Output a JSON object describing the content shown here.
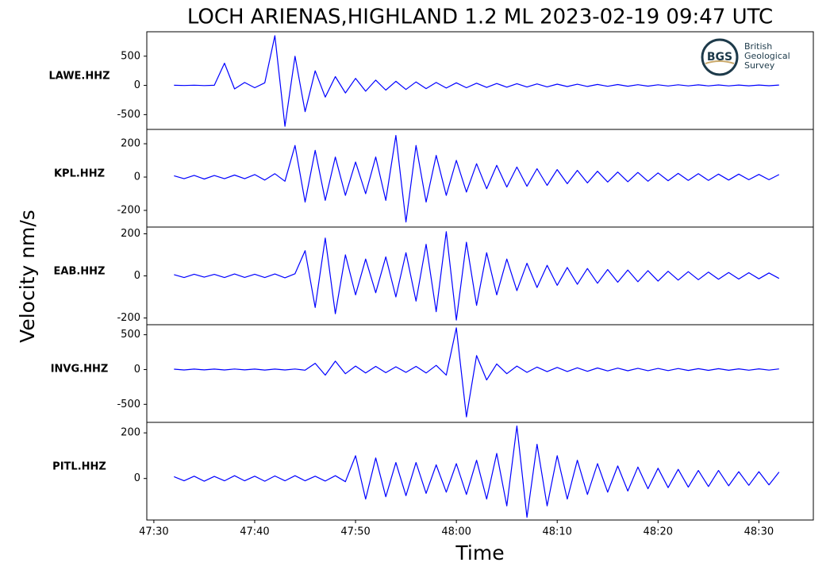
{
  "chart_data": [
    {
      "type": "line",
      "title": "LOCH ARIENAS,HIGHLAND 1.2 ML   2023-02-19 09:47 UTC",
      "y_label": "Velocity nm/s",
      "label": "LAWE.HHZ",
      "color": "#0000ff",
      "x": [
        2852,
        2853,
        2854,
        2855,
        2856,
        2857,
        2858,
        2859,
        2860,
        2861,
        2862,
        2863,
        2864,
        2865,
        2866,
        2867,
        2868,
        2869,
        2870,
        2871,
        2872,
        2873,
        2874,
        2875,
        2876,
        2877,
        2878,
        2879,
        2880,
        2881,
        2882,
        2883,
        2884,
        2885,
        2886,
        2887,
        2888,
        2889,
        2890,
        2891,
        2892,
        2893,
        2894,
        2895,
        2896,
        2897,
        2898,
        2899,
        2900,
        2901,
        2902,
        2903,
        2904,
        2905,
        2906,
        2907,
        2908,
        2909,
        2910,
        2911,
        2912
      ],
      "values": [
        3,
        -2,
        4,
        -3,
        2,
        380,
        -60,
        50,
        -40,
        45,
        850,
        -700,
        500,
        -450,
        250,
        -200,
        150,
        -130,
        120,
        -100,
        90,
        -80,
        70,
        -70,
        60,
        -55,
        50,
        -45,
        45,
        -40,
        38,
        -35,
        32,
        -30,
        30,
        -28,
        25,
        -25,
        22,
        -20,
        20,
        -18,
        16,
        -15,
        15,
        -14,
        12,
        -12,
        11,
        -10,
        10,
        -9,
        9,
        -8,
        8,
        -8,
        7,
        -7,
        7,
        -6,
        6
      ],
      "xlim": [
        2849.3,
        2915.4
      ],
      "ylim": [
        -753,
        918
      ],
      "yticks": [
        -500,
        0,
        500
      ]
    },
    {
      "type": "line",
      "label": "KPL.HHZ",
      "color": "#0000ff",
      "x": [
        2852,
        2853,
        2854,
        2855,
        2856,
        2857,
        2858,
        2859,
        2860,
        2861,
        2862,
        2863,
        2864,
        2865,
        2866,
        2867,
        2868,
        2869,
        2870,
        2871,
        2872,
        2873,
        2874,
        2875,
        2876,
        2877,
        2878,
        2879,
        2880,
        2881,
        2882,
        2883,
        2884,
        2885,
        2886,
        2887,
        2888,
        2889,
        2890,
        2891,
        2892,
        2893,
        2894,
        2895,
        2896,
        2897,
        2898,
        2899,
        2900,
        2901,
        2902,
        2903,
        2904,
        2905,
        2906,
        2907,
        2908,
        2909,
        2910,
        2911,
        2912
      ],
      "values": [
        8,
        -10,
        10,
        -12,
        9,
        -10,
        12,
        -10,
        15,
        -18,
        20,
        -25,
        190,
        -150,
        160,
        -140,
        120,
        -110,
        90,
        -100,
        120,
        -140,
        250,
        -270,
        190,
        -150,
        130,
        -110,
        100,
        -90,
        80,
        -70,
        70,
        -60,
        60,
        -55,
        50,
        -50,
        45,
        -40,
        40,
        -35,
        35,
        -30,
        30,
        -28,
        28,
        -25,
        25,
        -22,
        22,
        -20,
        20,
        -20,
        18,
        -18,
        18,
        -16,
        16,
        -16,
        15
      ],
      "xlim": [
        2849.3,
        2915.4
      ],
      "ylim": [
        -300,
        286
      ],
      "yticks": [
        -200,
        0,
        200
      ]
    },
    {
      "type": "line",
      "label": "EAB.HHZ",
      "color": "#0000ff",
      "x": [
        2852,
        2853,
        2854,
        2855,
        2856,
        2857,
        2858,
        2859,
        2860,
        2861,
        2862,
        2863,
        2864,
        2865,
        2866,
        2867,
        2868,
        2869,
        2870,
        2871,
        2872,
        2873,
        2874,
        2875,
        2876,
        2877,
        2878,
        2879,
        2880,
        2881,
        2882,
        2883,
        2884,
        2885,
        2886,
        2887,
        2888,
        2889,
        2890,
        2891,
        2892,
        2893,
        2894,
        2895,
        2896,
        2897,
        2898,
        2899,
        2900,
        2901,
        2902,
        2903,
        2904,
        2905,
        2906,
        2907,
        2908,
        2909,
        2910,
        2911,
        2912
      ],
      "values": [
        6,
        -8,
        8,
        -6,
        7,
        -8,
        9,
        -7,
        8,
        -8,
        9,
        -9,
        10,
        120,
        -150,
        180,
        -180,
        100,
        -90,
        80,
        -80,
        90,
        -100,
        110,
        -120,
        150,
        -170,
        210,
        -210,
        160,
        -140,
        110,
        -90,
        80,
        -70,
        60,
        -55,
        50,
        -45,
        40,
        -40,
        35,
        -35,
        30,
        -30,
        28,
        -28,
        25,
        -25,
        22,
        -20,
        20,
        -18,
        18,
        -16,
        16,
        -15,
        15,
        -14,
        14,
        -12
      ],
      "xlim": [
        2849.3,
        2915.4
      ],
      "ylim": [
        -232,
        232
      ],
      "yticks": [
        -200,
        0,
        200
      ]
    },
    {
      "type": "line",
      "label": "INVG.HHZ",
      "color": "#0000ff",
      "x": [
        2852,
        2853,
        2854,
        2855,
        2856,
        2857,
        2858,
        2859,
        2860,
        2861,
        2862,
        2863,
        2864,
        2865,
        2866,
        2867,
        2868,
        2869,
        2870,
        2871,
        2872,
        2873,
        2874,
        2875,
        2876,
        2877,
        2878,
        2879,
        2880,
        2881,
        2882,
        2883,
        2884,
        2885,
        2886,
        2887,
        2888,
        2889,
        2890,
        2891,
        2892,
        2893,
        2894,
        2895,
        2896,
        2897,
        2898,
        2899,
        2900,
        2901,
        2902,
        2903,
        2904,
        2905,
        2906,
        2907,
        2908,
        2909,
        2910,
        2911,
        2912
      ],
      "values": [
        5,
        -6,
        6,
        -5,
        6,
        -6,
        7,
        -5,
        6,
        -7,
        6,
        -6,
        8,
        -10,
        90,
        -80,
        120,
        -60,
        50,
        -50,
        45,
        -45,
        40,
        -40,
        45,
        -50,
        60,
        -80,
        600,
        -680,
        200,
        -150,
        80,
        -60,
        50,
        -40,
        35,
        -30,
        30,
        -28,
        25,
        -25,
        22,
        -20,
        20,
        -18,
        18,
        -16,
        15,
        -15,
        14,
        -13,
        12,
        -12,
        12,
        -11,
        10,
        -10,
        10,
        -9,
        9
      ],
      "xlim": [
        2849.3,
        2915.4
      ],
      "ylim": [
        -759,
        644
      ],
      "yticks": [
        -500,
        0,
        500
      ]
    },
    {
      "type": "line",
      "label": "PITL.HHZ",
      "color": "#0000ff",
      "x_label": "Time",
      "x": [
        2852,
        2853,
        2854,
        2855,
        2856,
        2857,
        2858,
        2859,
        2860,
        2861,
        2862,
        2863,
        2864,
        2865,
        2866,
        2867,
        2868,
        2869,
        2870,
        2871,
        2872,
        2873,
        2874,
        2875,
        2876,
        2877,
        2878,
        2879,
        2880,
        2881,
        2882,
        2883,
        2884,
        2885,
        2886,
        2887,
        2888,
        2889,
        2890,
        2891,
        2892,
        2893,
        2894,
        2895,
        2896,
        2897,
        2898,
        2899,
        2900,
        2901,
        2902,
        2903,
        2904,
        2905,
        2906,
        2907,
        2908,
        2909,
        2910,
        2911,
        2912
      ],
      "values": [
        8,
        -10,
        10,
        -12,
        9,
        -10,
        12,
        -10,
        10,
        -12,
        11,
        -10,
        12,
        -10,
        10,
        -11,
        12,
        -14,
        100,
        -90,
        90,
        -80,
        70,
        -75,
        70,
        -65,
        60,
        -60,
        65,
        -70,
        80,
        -90,
        110,
        -120,
        230,
        -170,
        150,
        -120,
        100,
        -90,
        80,
        -70,
        65,
        -60,
        55,
        -55,
        50,
        -45,
        45,
        -40,
        40,
        -38,
        35,
        -35,
        35,
        -32,
        30,
        -30,
        30,
        -28,
        28
      ],
      "xlim": [
        2849.3,
        2915.4
      ],
      "ylim": [
        -182,
        246
      ],
      "yticks": [
        0,
        200
      ],
      "xticks": [
        {
          "value": 2850,
          "label": "47:30"
        },
        {
          "value": 2860,
          "label": "47:40"
        },
        {
          "value": 2870,
          "label": "47:50"
        },
        {
          "value": 2880,
          "label": "48:00"
        },
        {
          "value": 2890,
          "label": "48:10"
        },
        {
          "value": 2900,
          "label": "48:20"
        },
        {
          "value": 2910,
          "label": "48:30"
        }
      ]
    }
  ],
  "logo": {
    "mark": "BGS",
    "lines": [
      "British",
      "Geological",
      "Survey"
    ]
  }
}
